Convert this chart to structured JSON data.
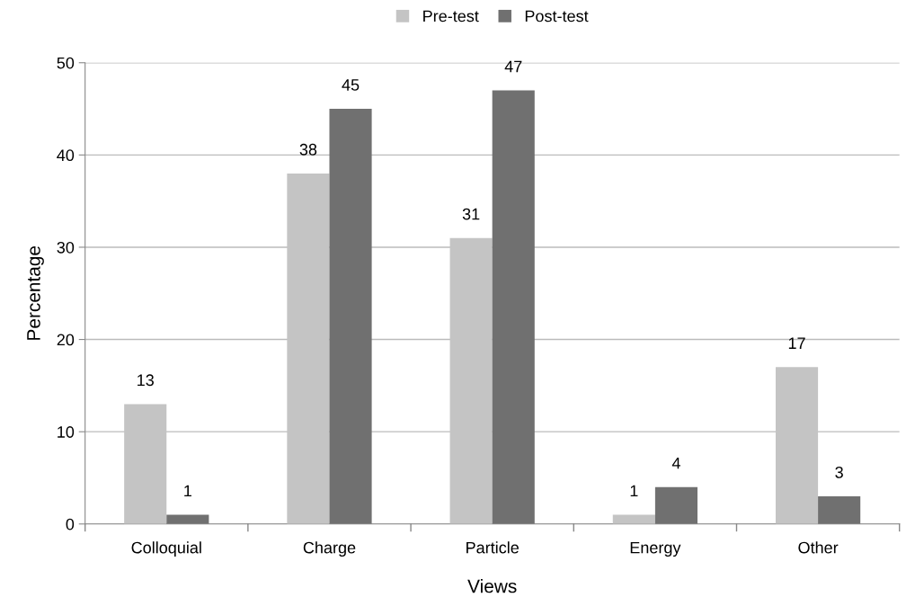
{
  "chart_data": {
    "type": "bar",
    "xlabel": "Views",
    "ylabel": "Percentage",
    "categories": [
      "Colloquial",
      "Charge",
      "Particle",
      "Energy",
      "Other"
    ],
    "series": [
      {
        "name": "Pre-test",
        "color": "#c4c4c4",
        "values": [
          13,
          38,
          31,
          1,
          17
        ]
      },
      {
        "name": "Post-test",
        "color": "#707070",
        "values": [
          1,
          45,
          47,
          4,
          3
        ]
      }
    ],
    "ylim": [
      0,
      50
    ],
    "yticks": [
      0,
      10,
      20,
      30,
      40,
      50
    ],
    "grid": "y",
    "legend": "top",
    "data_labels": true
  }
}
